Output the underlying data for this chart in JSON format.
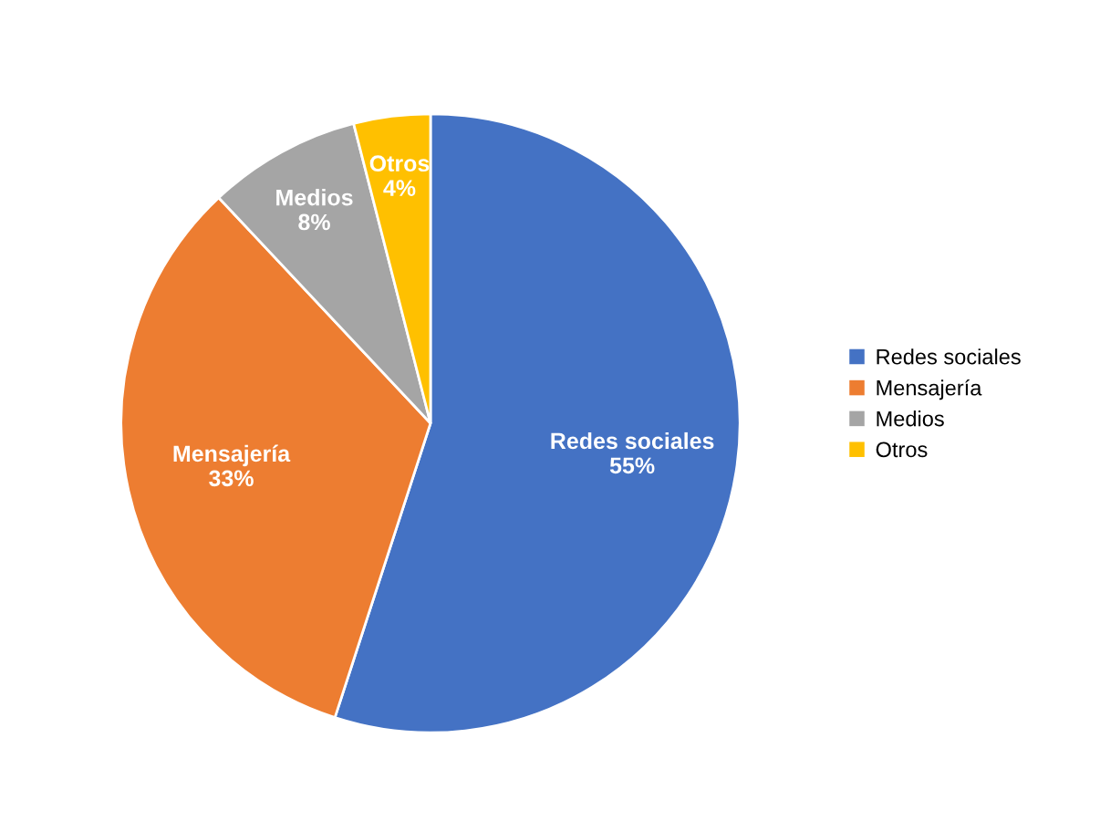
{
  "chart_data": {
    "type": "pie",
    "categories": [
      "Redes sociales",
      "Mensajería",
      "Medios",
      "Otros"
    ],
    "values": [
      55,
      33,
      8,
      4
    ],
    "value_labels": [
      "55%",
      "33%",
      "8%",
      "4%"
    ],
    "colors": [
      "#4472c4",
      "#ed7d31",
      "#a5a5a5",
      "#ffc000"
    ],
    "legend": "right"
  }
}
